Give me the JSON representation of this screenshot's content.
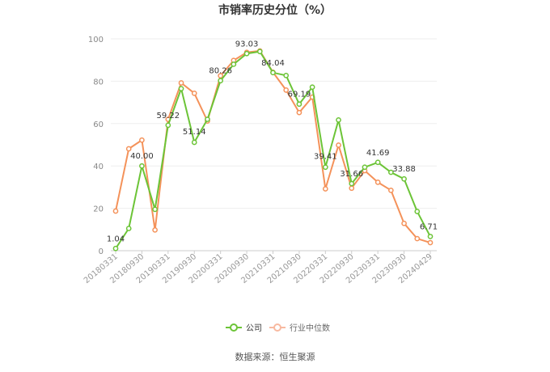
{
  "chart_data": {
    "type": "line",
    "title": "市销率历史分位（%）",
    "ylim": [
      0,
      100
    ],
    "yticks": [
      0,
      20,
      40,
      60,
      80,
      100
    ],
    "grid": true,
    "x_tick_labels": [
      "20180331",
      "20180930",
      "20190331",
      "20190930",
      "20200331",
      "20200930",
      "20210331",
      "20210930",
      "20220331",
      "20220930",
      "20230331",
      "20230930",
      "20240429"
    ],
    "x": [
      "20180331",
      "20180630",
      "20180930",
      "20181231",
      "20190331",
      "20190630",
      "20190930",
      "20191231",
      "20200331",
      "20200630",
      "20200930",
      "20201231",
      "20210331",
      "20210630",
      "20210930",
      "20211231",
      "20220331",
      "20220630",
      "20220930",
      "20221231",
      "20230331",
      "20230630",
      "20230930",
      "20231231",
      "20240429"
    ],
    "series": [
      {
        "name": "公司",
        "color": "#6cc437",
        "values": [
          1.04,
          10.5,
          40.0,
          19.5,
          59.22,
          76.5,
          51.14,
          62.0,
          80.26,
          88.0,
          93.03,
          94.0,
          84.04,
          82.7,
          69.19,
          77.2,
          39.41,
          61.7,
          31.66,
          39.4,
          41.69,
          37.0,
          33.88,
          18.5,
          6.71
        ]
      },
      {
        "name": "行业中位数",
        "color": "#f4925a",
        "values": [
          18.7,
          48.1,
          52.2,
          9.8,
          62.0,
          79.2,
          74.3,
          61.2,
          82.6,
          89.8,
          93.6,
          94.3,
          84.2,
          75.8,
          65.2,
          72.5,
          29.2,
          49.8,
          29.5,
          37.8,
          32.3,
          28.5,
          12.9,
          5.7,
          3.8
        ]
      }
    ],
    "data_labels": [
      {
        "index": 0,
        "text": "1.04"
      },
      {
        "index": 2,
        "text": "40.00"
      },
      {
        "index": 4,
        "text": "59.22"
      },
      {
        "index": 6,
        "text": "51.14"
      },
      {
        "index": 8,
        "text": "80.26"
      },
      {
        "index": 10,
        "text": "93.03"
      },
      {
        "index": 12,
        "text": "84.04"
      },
      {
        "index": 14,
        "text": "69.19"
      },
      {
        "index": 16,
        "text": "39.41"
      },
      {
        "index": 18,
        "text": "31.66"
      },
      {
        "index": 20,
        "text": "41.69"
      },
      {
        "index": 22,
        "text": "33.88"
      },
      {
        "index": 24,
        "text": "6.71"
      }
    ],
    "legend_position": "bottom-center",
    "legend": [
      {
        "label": "公司",
        "color": "#6cc437"
      },
      {
        "label": "行业中位数",
        "color": "#f4925a"
      }
    ]
  },
  "source_text": "数据来源：恒生聚源"
}
